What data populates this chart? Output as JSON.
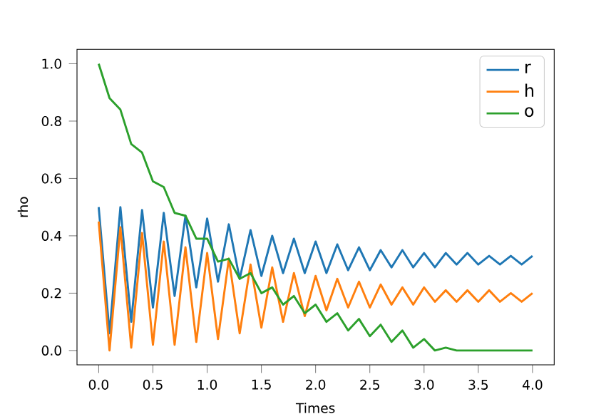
{
  "chart_data": {
    "type": "line",
    "xlabel": "Times",
    "ylabel": "rho",
    "x": [
      0,
      0.1,
      0.2,
      0.3,
      0.4,
      0.5,
      0.6,
      0.7,
      0.8,
      0.9,
      1.0,
      1.1,
      1.2,
      1.3,
      1.4,
      1.5,
      1.6,
      1.7,
      1.8,
      1.9,
      2.0,
      2.1,
      2.2,
      2.3,
      2.4,
      2.5,
      2.6,
      2.7,
      2.8,
      2.9,
      3.0,
      3.1,
      3.2,
      3.3,
      3.4,
      3.5,
      3.6,
      3.7,
      3.8,
      3.9,
      4.0
    ],
    "series": [
      {
        "name": "r",
        "color": "#1f77b4",
        "values": [
          0.5,
          0.06,
          0.5,
          0.1,
          0.49,
          0.15,
          0.48,
          0.19,
          0.47,
          0.22,
          0.46,
          0.24,
          0.44,
          0.25,
          0.42,
          0.26,
          0.4,
          0.27,
          0.39,
          0.27,
          0.38,
          0.27,
          0.37,
          0.28,
          0.36,
          0.28,
          0.35,
          0.29,
          0.35,
          0.29,
          0.34,
          0.29,
          0.34,
          0.3,
          0.34,
          0.3,
          0.33,
          0.3,
          0.33,
          0.3,
          0.33
        ]
      },
      {
        "name": "h",
        "color": "#ff7f0e",
        "values": [
          0.45,
          0.0,
          0.43,
          0.01,
          0.41,
          0.02,
          0.38,
          0.02,
          0.36,
          0.03,
          0.34,
          0.04,
          0.32,
          0.06,
          0.3,
          0.08,
          0.29,
          0.1,
          0.27,
          0.12,
          0.26,
          0.14,
          0.25,
          0.15,
          0.24,
          0.15,
          0.23,
          0.16,
          0.22,
          0.16,
          0.22,
          0.17,
          0.21,
          0.17,
          0.21,
          0.17,
          0.21,
          0.17,
          0.2,
          0.17,
          0.2
        ]
      },
      {
        "name": "o",
        "color": "#2ca02c",
        "values": [
          1.0,
          0.88,
          0.84,
          0.72,
          0.69,
          0.59,
          0.57,
          0.48,
          0.47,
          0.39,
          0.39,
          0.31,
          0.32,
          0.25,
          0.27,
          0.2,
          0.22,
          0.16,
          0.19,
          0.13,
          0.16,
          0.1,
          0.13,
          0.07,
          0.11,
          0.05,
          0.09,
          0.03,
          0.07,
          0.01,
          0.04,
          0.0,
          0.01,
          0.0,
          0.0,
          0.0,
          0.0,
          0.0,
          0.0,
          0.0,
          0.0
        ]
      }
    ],
    "xlim": [
      -0.2,
      4.2
    ],
    "ylim": [
      -0.05,
      1.05
    ],
    "xticks": [
      {
        "value": 0,
        "label": "0.0"
      },
      0.5,
      {
        "value": 1,
        "label": "1.0"
      },
      1.5,
      {
        "value": 2,
        "label": "2.0"
      },
      2.5,
      {
        "value": 3,
        "label": "3.0"
      },
      3.5,
      {
        "value": 4,
        "label": "4.0"
      }
    ],
    "yticks": [
      {
        "value": 0,
        "label": "0.0"
      },
      0.2,
      0.4,
      0.6,
      0.8,
      {
        "value": 1,
        "label": "1.0"
      }
    ],
    "legend": "top right",
    "grid": false
  }
}
